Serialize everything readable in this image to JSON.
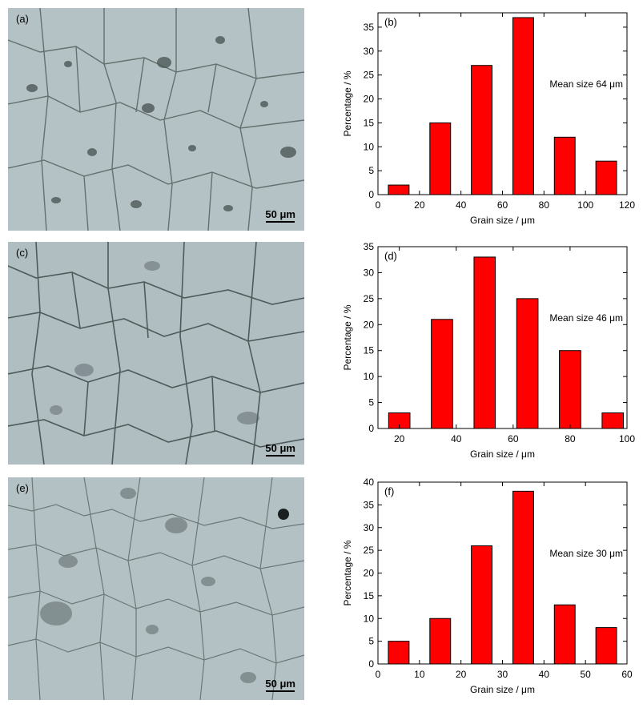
{
  "micrographs": [
    {
      "label": "(a)",
      "scale_bar": "50 μm"
    },
    {
      "label": "(c)",
      "scale_bar": "50 μm"
    },
    {
      "label": "(e)",
      "scale_bar": "50 μm"
    }
  ],
  "colors": {
    "bar_fill": "#ff0000",
    "bar_stroke": "#000000",
    "micrograph_bg": "#b3c1c4"
  },
  "chart_data": [
    {
      "type": "bar",
      "panel_label": "(b)",
      "annotation": "Mean size 64 μm",
      "xlabel": "Grain size / μm",
      "ylabel": "Percentage / %",
      "x": [
        10,
        30,
        50,
        70,
        90,
        110
      ],
      "values": [
        2,
        15,
        27,
        37,
        12,
        7
      ],
      "bar_width": 10,
      "xlim": [
        0,
        120
      ],
      "ylim": [
        0,
        38
      ],
      "xticks": [
        0,
        20,
        40,
        60,
        80,
        100,
        120
      ],
      "yticks": [
        0,
        5,
        10,
        15,
        20,
        25,
        30,
        35
      ],
      "grid": false
    },
    {
      "type": "bar",
      "panel_label": "(d)",
      "annotation": "Mean size 46 μm",
      "xlabel": "Grain size / μm",
      "ylabel": "Percentage / %",
      "x": [
        20,
        35,
        50,
        65,
        80,
        95
      ],
      "values": [
        3,
        21,
        33,
        25,
        15,
        3
      ],
      "bar_width": 7.5,
      "xlim": [
        12.5,
        100
      ],
      "ylim": [
        0,
        35
      ],
      "xticks": [
        20,
        40,
        60,
        80,
        100
      ],
      "yticks": [
        0,
        5,
        10,
        15,
        20,
        25,
        30,
        35
      ],
      "grid": false
    },
    {
      "type": "bar",
      "panel_label": "(f)",
      "annotation": "Mean size 30 μm",
      "xlabel": "Grain size / μm",
      "ylabel": "Percentage / %",
      "x": [
        5,
        15,
        25,
        35,
        45,
        55
      ],
      "values": [
        5,
        10,
        26,
        38,
        13,
        8
      ],
      "bar_width": 5,
      "xlim": [
        0,
        60
      ],
      "ylim": [
        0,
        40
      ],
      "xticks": [
        0,
        10,
        20,
        30,
        40,
        50,
        60
      ],
      "yticks": [
        0,
        5,
        10,
        15,
        20,
        25,
        30,
        35,
        40
      ],
      "grid": false
    }
  ]
}
